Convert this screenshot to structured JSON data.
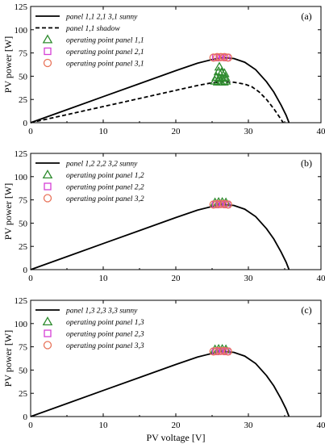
{
  "colors": {
    "curve": "#000000",
    "triangle": "#2e8b2e",
    "square": "#d63fd6",
    "circle": "#e8735a"
  },
  "chart_data": [
    {
      "type": "line",
      "tag": "(a)",
      "xlabel": "",
      "ylabel": "PV power [W]",
      "xlim": [
        0,
        40
      ],
      "ylim": [
        0,
        125
      ],
      "xticks": [
        "0",
        "10",
        "20",
        "30",
        "40"
      ],
      "yticks": [
        "0",
        "25",
        "50",
        "75",
        "100",
        "125"
      ],
      "legend_position": "top-left",
      "series": [
        {
          "name": "panel 1,1  2,1  3,1 sunny",
          "style": "solid",
          "marker": "none",
          "x": [
            0,
            5,
            10,
            15,
            20,
            23,
            25,
            26.5,
            28,
            29.5,
            31,
            32.5,
            33.5,
            34.5,
            35.2,
            35.6
          ],
          "y": [
            0,
            14,
            28,
            42,
            56,
            64,
            68,
            70,
            69,
            65,
            57,
            44,
            33,
            19,
            8,
            0
          ]
        },
        {
          "name": "panel 1,1 shadow",
          "style": "dashed",
          "marker": "none",
          "x": [
            0,
            5,
            10,
            15,
            20,
            23,
            25,
            26.5,
            28,
            29.5,
            30.5,
            31.5,
            32.5,
            33.5,
            34.2,
            34.8
          ],
          "y": [
            0,
            8.7,
            17.4,
            26,
            34.8,
            40,
            43,
            44,
            43.5,
            41.5,
            38.5,
            33,
            25,
            15,
            7,
            0
          ]
        },
        {
          "name": "operating point panel 1,1",
          "style": "none",
          "marker": "triangle",
          "x": [
            25.4,
            25.8,
            26.2,
            26.6,
            26.9,
            25.6,
            26.0,
            26.4,
            26.8,
            25.9,
            26.3,
            26.7,
            26.0
          ],
          "y": [
            45,
            44,
            44,
            44,
            45,
            49,
            48,
            48,
            49,
            55,
            54,
            53,
            60
          ]
        },
        {
          "name": "operating point panel 2,1",
          "style": "none",
          "marker": "square",
          "x": [
            25.5,
            26.0,
            26.5,
            27.0
          ],
          "y": [
            70,
            70.5,
            70.5,
            70
          ]
        },
        {
          "name": "operating point panel 3,1",
          "style": "none",
          "marker": "circle",
          "x": [
            25.2,
            25.7,
            26.2,
            26.7,
            27.2
          ],
          "y": [
            70,
            70.5,
            70.5,
            70.5,
            70
          ]
        }
      ]
    },
    {
      "type": "line",
      "tag": "(b)",
      "xlabel": "",
      "ylabel": "PV power [W]",
      "xlim": [
        0,
        40
      ],
      "ylim": [
        0,
        125
      ],
      "xticks": [
        "0",
        "10",
        "20",
        "30",
        "40"
      ],
      "yticks": [
        "0",
        "25",
        "50",
        "75",
        "100",
        "125"
      ],
      "legend_position": "top-left",
      "series": [
        {
          "name": "panel 1,2  2,2  3,2 sunny",
          "style": "solid",
          "marker": "none",
          "x": [
            0,
            5,
            10,
            15,
            20,
            23,
            25,
            26.5,
            28,
            29.5,
            31,
            32.5,
            33.5,
            34.5,
            35.2,
            35.6
          ],
          "y": [
            0,
            14,
            28,
            42,
            56,
            64,
            68,
            70,
            69,
            65,
            57,
            44,
            33,
            19,
            8,
            0
          ]
        },
        {
          "name": "operating point panel 1,2",
          "style": "none",
          "marker": "triangle",
          "x": [
            25.4,
            25.9,
            26.4,
            26.9
          ],
          "y": [
            72,
            72.5,
            72.5,
            72
          ]
        },
        {
          "name": "operating point panel 2,2",
          "style": "none",
          "marker": "square",
          "x": [
            25.5,
            26.0,
            26.5,
            27.0
          ],
          "y": [
            70,
            70.5,
            70.5,
            70
          ]
        },
        {
          "name": "operating point panel 3,2",
          "style": "none",
          "marker": "circle",
          "x": [
            25.2,
            25.7,
            26.2,
            26.7,
            27.2
          ],
          "y": [
            70,
            70.5,
            70.5,
            70.5,
            70
          ]
        }
      ]
    },
    {
      "type": "line",
      "tag": "(c)",
      "xlabel": "PV voltage [V]",
      "ylabel": "PV power [W]",
      "xlim": [
        0,
        40
      ],
      "ylim": [
        0,
        125
      ],
      "xticks": [
        "0",
        "10",
        "20",
        "30",
        "40"
      ],
      "yticks": [
        "0",
        "25",
        "50",
        "75",
        "100",
        "125"
      ],
      "legend_position": "top-left",
      "series": [
        {
          "name": "panel  1,3  2,3  3,3 sunny",
          "style": "solid",
          "marker": "none",
          "x": [
            0,
            5,
            10,
            15,
            20,
            23,
            25,
            26.5,
            28,
            29.5,
            31,
            32.5,
            33.5,
            34.5,
            35.2,
            35.6
          ],
          "y": [
            0,
            14,
            28,
            42,
            56,
            64,
            68,
            70,
            69,
            65,
            57,
            44,
            33,
            19,
            8,
            0
          ]
        },
        {
          "name": "operating point panel 1,3",
          "style": "none",
          "marker": "triangle",
          "x": [
            25.4,
            25.9,
            26.4,
            26.9
          ],
          "y": [
            72,
            72.5,
            72.5,
            72
          ]
        },
        {
          "name": "operating point panel 2,3",
          "style": "none",
          "marker": "square",
          "x": [
            25.5,
            26.0,
            26.5,
            27.0
          ],
          "y": [
            70,
            70.5,
            70.5,
            70
          ]
        },
        {
          "name": "operating point panel 3,3",
          "style": "none",
          "marker": "circle",
          "x": [
            25.2,
            25.7,
            26.2,
            26.7,
            27.2
          ],
          "y": [
            70,
            70.5,
            70.5,
            70.5,
            70
          ]
        }
      ]
    }
  ]
}
